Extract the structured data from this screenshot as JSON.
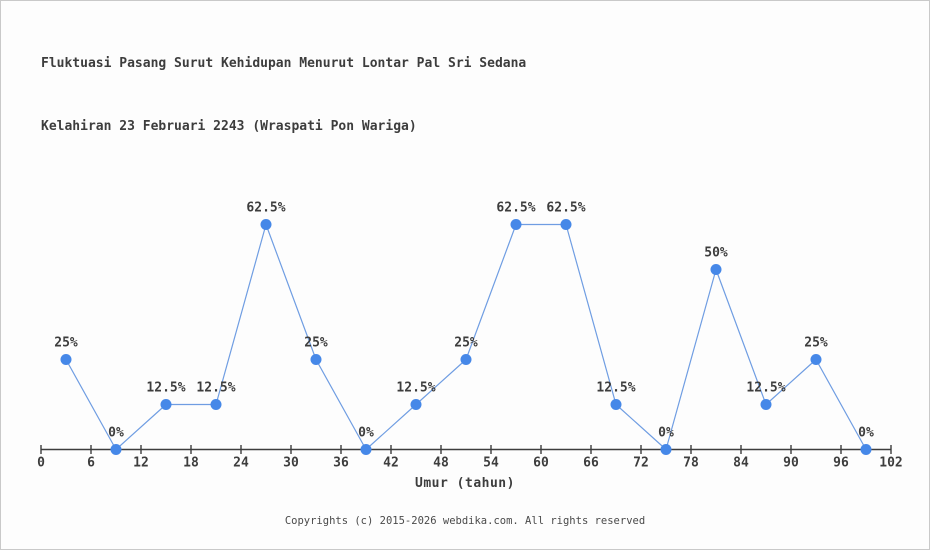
{
  "page": {
    "background": "#fdfdfd",
    "border_color": "#c9c9c9"
  },
  "chart_data": {
    "type": "line",
    "title_line1": "Fluktuasi Pasang Surut Kehidupan Menurut Lontar Pal Sri Sedana",
    "title_line2": "Kelahiran 23 Februari 2243 (Wraspati Pon Wariga)",
    "xlabel": "Umur (tahun)",
    "ylabel": "",
    "x": [
      3,
      9,
      15,
      21,
      27,
      33,
      39,
      45,
      51,
      57,
      63,
      69,
      75,
      81,
      87,
      93,
      99
    ],
    "values": [
      25,
      0,
      12.5,
      12.5,
      62.5,
      25,
      0,
      12.5,
      25,
      62.5,
      62.5,
      12.5,
      0,
      50,
      12.5,
      25,
      0
    ],
    "point_labels": [
      "25%",
      "0%",
      "12.5%",
      "12.5%",
      "62.5%",
      "25%",
      "0%",
      "12.5%",
      "25%",
      "62.5%",
      "62.5%",
      "12.5%",
      "0%",
      "50%",
      "12.5%",
      "25%",
      "0%"
    ],
    "x_ticks": [
      0,
      6,
      12,
      18,
      24,
      30,
      36,
      42,
      48,
      54,
      60,
      66,
      72,
      78,
      84,
      90,
      96,
      102
    ],
    "xlim": [
      0,
      102
    ],
    "ylim": [
      0,
      70
    ],
    "grid": false,
    "legend": "none",
    "line_color": "#6f9de2",
    "marker_color": "#4688e8",
    "axis_color": "#3d3d3d",
    "label_color": "#3d3d3d"
  },
  "footer": {
    "text": "Copyrights (c) 2015-2026 webdika.com. All rights reserved"
  }
}
